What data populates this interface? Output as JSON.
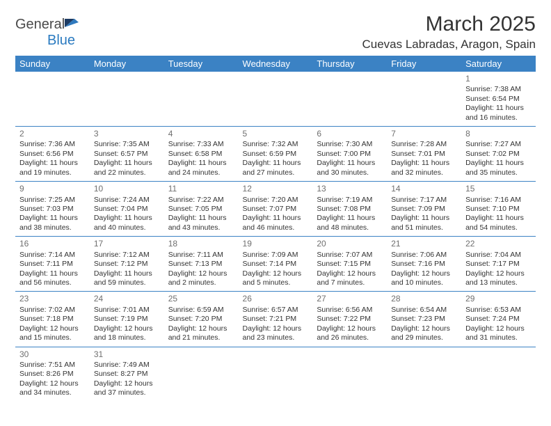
{
  "logo": {
    "text1": "General",
    "text2": "Blue"
  },
  "title": "March 2025",
  "location": "Cuevas Labradas, Aragon, Spain",
  "colors": {
    "header_bg": "#3b82c4",
    "header_text": "#ffffff",
    "border": "#3b82c4",
    "daynum": "#6f6f6f",
    "body_text": "#333333",
    "logo_gray": "#4a4a4a",
    "logo_blue": "#2a7ac0"
  },
  "weekdays": [
    "Sunday",
    "Monday",
    "Tuesday",
    "Wednesday",
    "Thursday",
    "Friday",
    "Saturday"
  ],
  "weeks": [
    [
      null,
      null,
      null,
      null,
      null,
      null,
      {
        "n": "1",
        "sr": "Sunrise: 7:38 AM",
        "ss": "Sunset: 6:54 PM",
        "dl1": "Daylight: 11 hours",
        "dl2": "and 16 minutes."
      }
    ],
    [
      {
        "n": "2",
        "sr": "Sunrise: 7:36 AM",
        "ss": "Sunset: 6:56 PM",
        "dl1": "Daylight: 11 hours",
        "dl2": "and 19 minutes."
      },
      {
        "n": "3",
        "sr": "Sunrise: 7:35 AM",
        "ss": "Sunset: 6:57 PM",
        "dl1": "Daylight: 11 hours",
        "dl2": "and 22 minutes."
      },
      {
        "n": "4",
        "sr": "Sunrise: 7:33 AM",
        "ss": "Sunset: 6:58 PM",
        "dl1": "Daylight: 11 hours",
        "dl2": "and 24 minutes."
      },
      {
        "n": "5",
        "sr": "Sunrise: 7:32 AM",
        "ss": "Sunset: 6:59 PM",
        "dl1": "Daylight: 11 hours",
        "dl2": "and 27 minutes."
      },
      {
        "n": "6",
        "sr": "Sunrise: 7:30 AM",
        "ss": "Sunset: 7:00 PM",
        "dl1": "Daylight: 11 hours",
        "dl2": "and 30 minutes."
      },
      {
        "n": "7",
        "sr": "Sunrise: 7:28 AM",
        "ss": "Sunset: 7:01 PM",
        "dl1": "Daylight: 11 hours",
        "dl2": "and 32 minutes."
      },
      {
        "n": "8",
        "sr": "Sunrise: 7:27 AM",
        "ss": "Sunset: 7:02 PM",
        "dl1": "Daylight: 11 hours",
        "dl2": "and 35 minutes."
      }
    ],
    [
      {
        "n": "9",
        "sr": "Sunrise: 7:25 AM",
        "ss": "Sunset: 7:03 PM",
        "dl1": "Daylight: 11 hours",
        "dl2": "and 38 minutes."
      },
      {
        "n": "10",
        "sr": "Sunrise: 7:24 AM",
        "ss": "Sunset: 7:04 PM",
        "dl1": "Daylight: 11 hours",
        "dl2": "and 40 minutes."
      },
      {
        "n": "11",
        "sr": "Sunrise: 7:22 AM",
        "ss": "Sunset: 7:05 PM",
        "dl1": "Daylight: 11 hours",
        "dl2": "and 43 minutes."
      },
      {
        "n": "12",
        "sr": "Sunrise: 7:20 AM",
        "ss": "Sunset: 7:07 PM",
        "dl1": "Daylight: 11 hours",
        "dl2": "and 46 minutes."
      },
      {
        "n": "13",
        "sr": "Sunrise: 7:19 AM",
        "ss": "Sunset: 7:08 PM",
        "dl1": "Daylight: 11 hours",
        "dl2": "and 48 minutes."
      },
      {
        "n": "14",
        "sr": "Sunrise: 7:17 AM",
        "ss": "Sunset: 7:09 PM",
        "dl1": "Daylight: 11 hours",
        "dl2": "and 51 minutes."
      },
      {
        "n": "15",
        "sr": "Sunrise: 7:16 AM",
        "ss": "Sunset: 7:10 PM",
        "dl1": "Daylight: 11 hours",
        "dl2": "and 54 minutes."
      }
    ],
    [
      {
        "n": "16",
        "sr": "Sunrise: 7:14 AM",
        "ss": "Sunset: 7:11 PM",
        "dl1": "Daylight: 11 hours",
        "dl2": "and 56 minutes."
      },
      {
        "n": "17",
        "sr": "Sunrise: 7:12 AM",
        "ss": "Sunset: 7:12 PM",
        "dl1": "Daylight: 11 hours",
        "dl2": "and 59 minutes."
      },
      {
        "n": "18",
        "sr": "Sunrise: 7:11 AM",
        "ss": "Sunset: 7:13 PM",
        "dl1": "Daylight: 12 hours",
        "dl2": "and 2 minutes."
      },
      {
        "n": "19",
        "sr": "Sunrise: 7:09 AM",
        "ss": "Sunset: 7:14 PM",
        "dl1": "Daylight: 12 hours",
        "dl2": "and 5 minutes."
      },
      {
        "n": "20",
        "sr": "Sunrise: 7:07 AM",
        "ss": "Sunset: 7:15 PM",
        "dl1": "Daylight: 12 hours",
        "dl2": "and 7 minutes."
      },
      {
        "n": "21",
        "sr": "Sunrise: 7:06 AM",
        "ss": "Sunset: 7:16 PM",
        "dl1": "Daylight: 12 hours",
        "dl2": "and 10 minutes."
      },
      {
        "n": "22",
        "sr": "Sunrise: 7:04 AM",
        "ss": "Sunset: 7:17 PM",
        "dl1": "Daylight: 12 hours",
        "dl2": "and 13 minutes."
      }
    ],
    [
      {
        "n": "23",
        "sr": "Sunrise: 7:02 AM",
        "ss": "Sunset: 7:18 PM",
        "dl1": "Daylight: 12 hours",
        "dl2": "and 15 minutes."
      },
      {
        "n": "24",
        "sr": "Sunrise: 7:01 AM",
        "ss": "Sunset: 7:19 PM",
        "dl1": "Daylight: 12 hours",
        "dl2": "and 18 minutes."
      },
      {
        "n": "25",
        "sr": "Sunrise: 6:59 AM",
        "ss": "Sunset: 7:20 PM",
        "dl1": "Daylight: 12 hours",
        "dl2": "and 21 minutes."
      },
      {
        "n": "26",
        "sr": "Sunrise: 6:57 AM",
        "ss": "Sunset: 7:21 PM",
        "dl1": "Daylight: 12 hours",
        "dl2": "and 23 minutes."
      },
      {
        "n": "27",
        "sr": "Sunrise: 6:56 AM",
        "ss": "Sunset: 7:22 PM",
        "dl1": "Daylight: 12 hours",
        "dl2": "and 26 minutes."
      },
      {
        "n": "28",
        "sr": "Sunrise: 6:54 AM",
        "ss": "Sunset: 7:23 PM",
        "dl1": "Daylight: 12 hours",
        "dl2": "and 29 minutes."
      },
      {
        "n": "29",
        "sr": "Sunrise: 6:53 AM",
        "ss": "Sunset: 7:24 PM",
        "dl1": "Daylight: 12 hours",
        "dl2": "and 31 minutes."
      }
    ],
    [
      {
        "n": "30",
        "sr": "Sunrise: 7:51 AM",
        "ss": "Sunset: 8:26 PM",
        "dl1": "Daylight: 12 hours",
        "dl2": "and 34 minutes."
      },
      {
        "n": "31",
        "sr": "Sunrise: 7:49 AM",
        "ss": "Sunset: 8:27 PM",
        "dl1": "Daylight: 12 hours",
        "dl2": "and 37 minutes."
      },
      null,
      null,
      null,
      null,
      null
    ]
  ]
}
